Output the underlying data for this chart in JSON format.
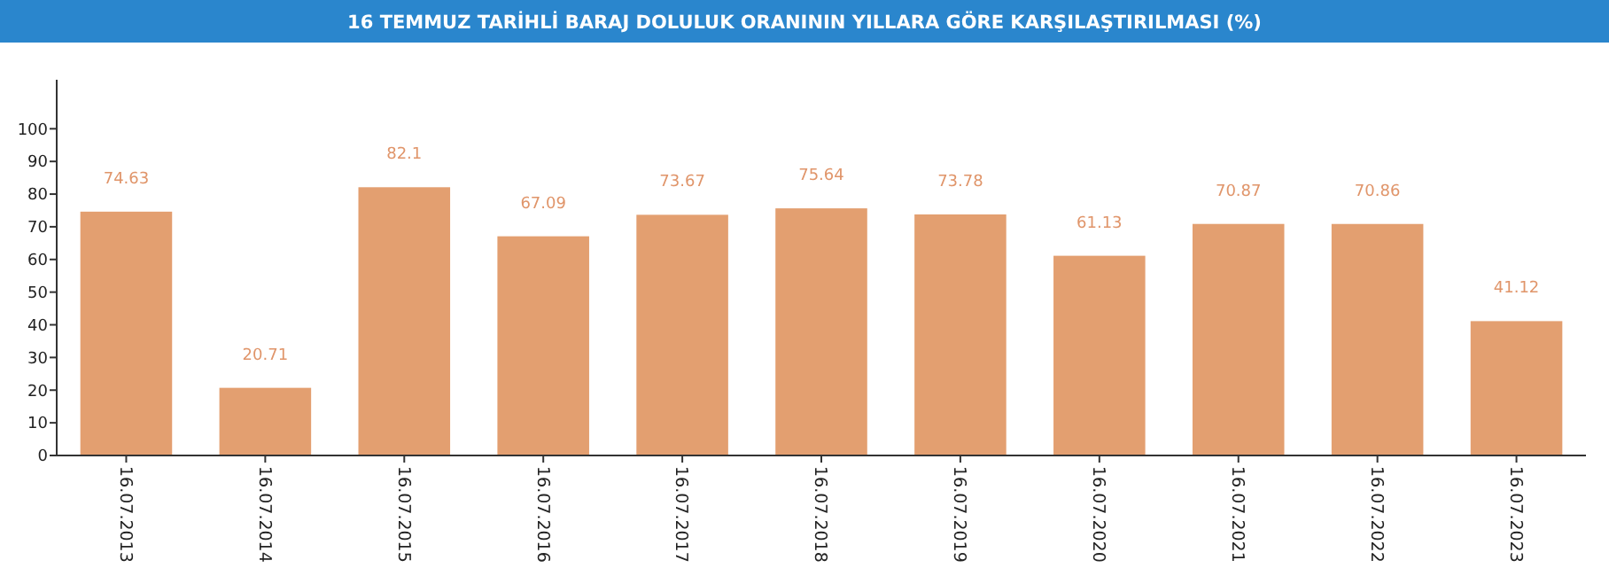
{
  "chart_data": {
    "type": "bar",
    "title": "16 TEMMUZ TARİHLİ BARAJ DOLULUK ORANININ YILLARA GÖRE KARŞILAŞTIRILMASI (%)",
    "categories": [
      "16.07.2013",
      "16.07.2014",
      "16.07.2015",
      "16.07.2016",
      "16.07.2017",
      "16.07.2018",
      "16.07.2019",
      "16.07.2020",
      "16.07.2021",
      "16.07.2022",
      "16.07.2023"
    ],
    "values": [
      74.63,
      20.71,
      82.1,
      67.09,
      73.67,
      75.64,
      73.78,
      61.13,
      70.87,
      70.86,
      41.12
    ],
    "color": "#e39f70",
    "ylim": [
      0,
      115
    ],
    "yticks": [
      0,
      10,
      20,
      30,
      40,
      50,
      60,
      70,
      80,
      90,
      100
    ],
    "data_labels": true
  }
}
